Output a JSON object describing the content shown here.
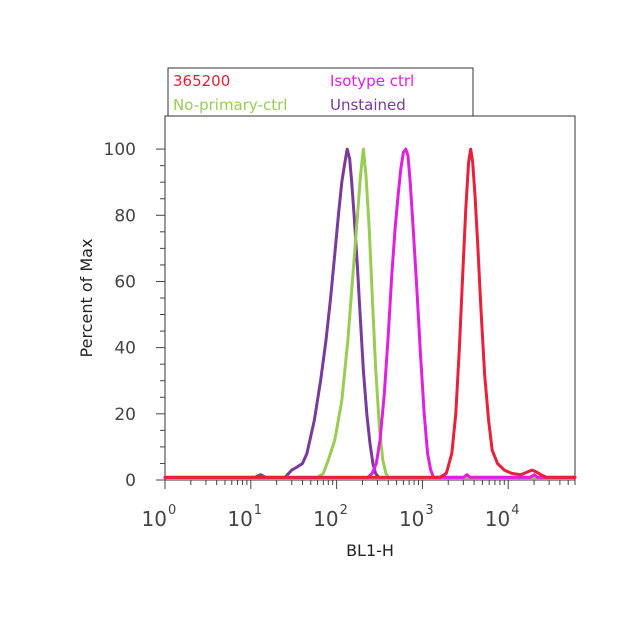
{
  "chart_data": {
    "type": "line",
    "xlabel": "BL1-H",
    "ylabel": "Percent of Max",
    "x_scale": "log",
    "xlim": [
      1,
      60000
    ],
    "ylim": [
      0,
      110
    ],
    "y_ticks": [
      0,
      20,
      40,
      60,
      80,
      100
    ],
    "x_ticks": [
      {
        "value": 1,
        "base": "10",
        "exp": "0"
      },
      {
        "value": 10,
        "base": "10",
        "exp": "1"
      },
      {
        "value": 100,
        "base": "10",
        "exp": "2"
      },
      {
        "value": 1000,
        "base": "10",
        "exp": "3"
      },
      {
        "value": 10000,
        "base": "10",
        "exp": "4"
      }
    ],
    "legend": {
      "placement": "top",
      "entries": [
        {
          "label": "365200",
          "color": "#e8203a"
        },
        {
          "label": "Isotype ctrl",
          "color": "#e020e0"
        },
        {
          "label": "No-primary-ctrl",
          "color": "#99cc55"
        },
        {
          "label": "Unstained",
          "color": "#7a3a9a"
        }
      ]
    },
    "series": [
      {
        "name": "Unstained",
        "color": "#7a3a9a",
        "points": [
          [
            1,
            0.8
          ],
          [
            11,
            0.8
          ],
          [
            13,
            1.6
          ],
          [
            15,
            0.8
          ],
          [
            25,
            0.8
          ],
          [
            30,
            3
          ],
          [
            35,
            4
          ],
          [
            40,
            5
          ],
          [
            45,
            8
          ],
          [
            55,
            18
          ],
          [
            65,
            30
          ],
          [
            75,
            42
          ],
          [
            85,
            55
          ],
          [
            95,
            68
          ],
          [
            105,
            80
          ],
          [
            115,
            90
          ],
          [
            125,
            96
          ],
          [
            133,
            100
          ],
          [
            142,
            97
          ],
          [
            150,
            90
          ],
          [
            160,
            80
          ],
          [
            175,
            64
          ],
          [
            190,
            48
          ],
          [
            205,
            33
          ],
          [
            225,
            20
          ],
          [
            245,
            11
          ],
          [
            265,
            5
          ],
          [
            285,
            2
          ],
          [
            310,
            0.8
          ],
          [
            60000,
            0.8
          ]
        ]
      },
      {
        "name": "No-primary-ctrl",
        "color": "#99cc55",
        "points": [
          [
            1,
            0.8
          ],
          [
            60,
            0.8
          ],
          [
            70,
            2
          ],
          [
            80,
            6
          ],
          [
            95,
            12
          ],
          [
            115,
            24
          ],
          [
            135,
            42
          ],
          [
            155,
            62
          ],
          [
            175,
            80
          ],
          [
            190,
            92
          ],
          [
            205,
            100
          ],
          [
            220,
            92
          ],
          [
            240,
            76
          ],
          [
            260,
            56
          ],
          [
            285,
            34
          ],
          [
            315,
            16
          ],
          [
            345,
            6
          ],
          [
            375,
            2
          ],
          [
            400,
            0.8
          ],
          [
            60000,
            0.8
          ]
        ]
      },
      {
        "name": "Isotype ctrl",
        "color": "#e020e0",
        "points": [
          [
            1,
            0.8
          ],
          [
            230,
            0.8
          ],
          [
            260,
            2
          ],
          [
            290,
            5
          ],
          [
            320,
            12
          ],
          [
            360,
            26
          ],
          [
            400,
            44
          ],
          [
            440,
            62
          ],
          [
            480,
            76
          ],
          [
            520,
            86
          ],
          [
            560,
            94
          ],
          [
            600,
            99
          ],
          [
            640,
            100
          ],
          [
            680,
            98
          ],
          [
            720,
            90
          ],
          [
            780,
            76
          ],
          [
            860,
            58
          ],
          [
            950,
            38
          ],
          [
            1050,
            20
          ],
          [
            1150,
            8
          ],
          [
            1250,
            3
          ],
          [
            1350,
            0.8
          ],
          [
            3000,
            0.8
          ],
          [
            3300,
            1.6
          ],
          [
            3600,
            0.8
          ],
          [
            18000,
            0.8
          ],
          [
            20000,
            1.6
          ],
          [
            22000,
            0.8
          ],
          [
            60000,
            0.8
          ]
        ]
      },
      {
        "name": "365200",
        "color": "#e8203a",
        "points": [
          [
            1,
            0.8
          ],
          [
            1600,
            0.8
          ],
          [
            1900,
            2
          ],
          [
            2200,
            8
          ],
          [
            2450,
            20
          ],
          [
            2700,
            40
          ],
          [
            2950,
            62
          ],
          [
            3200,
            82
          ],
          [
            3450,
            96
          ],
          [
            3650,
            100
          ],
          [
            3850,
            96
          ],
          [
            4100,
            86
          ],
          [
            4400,
            72
          ],
          [
            4800,
            52
          ],
          [
            5300,
            32
          ],
          [
            5900,
            18
          ],
          [
            6500,
            9
          ],
          [
            7500,
            5
          ],
          [
            9000,
            3
          ],
          [
            11000,
            2
          ],
          [
            14000,
            1.6
          ],
          [
            17000,
            2.5
          ],
          [
            19000,
            3
          ],
          [
            21000,
            2.5
          ],
          [
            24000,
            1.6
          ],
          [
            28000,
            0.8
          ],
          [
            60000,
            0.8
          ]
        ]
      }
    ]
  }
}
